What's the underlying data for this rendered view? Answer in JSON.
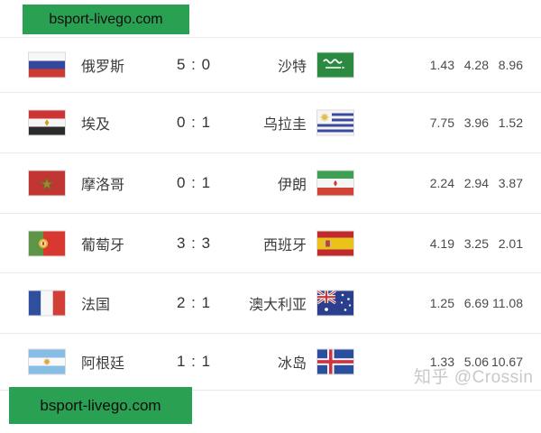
{
  "watermarks": {
    "top": {
      "text": "bsport-livego.com",
      "bg_color": "#2aa052",
      "text_color": "#0e0e0e"
    },
    "bottom": {
      "text": "bsport-livego.com",
      "bg_color": "#2aa052",
      "text_color": "#0e0e0e"
    },
    "zhihu": {
      "text": "知乎 @Crossin",
      "color": "#c9c9c9"
    }
  },
  "colors": {
    "divider": "#e9e9e9",
    "team_name": "#3c3c3c",
    "score": "#333333",
    "odds": "#4a4a4a"
  },
  "results_table": {
    "rows": [
      {
        "home": {
          "name": "俄罗斯",
          "flag": "russia"
        },
        "score": "5 : 0",
        "away": {
          "name": "沙特",
          "flag": "saudi-arabia"
        },
        "odds": [
          "1.43",
          "4.28",
          "8.96"
        ]
      },
      {
        "home": {
          "name": "埃及",
          "flag": "egypt"
        },
        "score": "0 : 1",
        "away": {
          "name": "乌拉圭",
          "flag": "uruguay"
        },
        "odds": [
          "7.75",
          "3.96",
          "1.52"
        ]
      },
      {
        "home": {
          "name": "摩洛哥",
          "flag": "morocco"
        },
        "score": "0 : 1",
        "away": {
          "name": "伊朗",
          "flag": "iran"
        },
        "odds": [
          "2.24",
          "2.94",
          "3.87"
        ]
      },
      {
        "home": {
          "name": "葡萄牙",
          "flag": "portugal"
        },
        "score": "3 : 3",
        "away": {
          "name": "西班牙",
          "flag": "spain"
        },
        "odds": [
          "4.19",
          "3.25",
          "2.01"
        ]
      },
      {
        "home": {
          "name": "法国",
          "flag": "france"
        },
        "score": "2 : 1",
        "away": {
          "name": "澳大利亚",
          "flag": "australia"
        },
        "odds": [
          "1.25",
          "6.69",
          "11.08"
        ]
      },
      {
        "home": {
          "name": "阿根廷",
          "flag": "argentina"
        },
        "score": "1 : 1",
        "away": {
          "name": "冰岛",
          "flag": "iceland"
        },
        "odds": [
          "1.33",
          "5.06",
          "10.67"
        ]
      }
    ]
  }
}
